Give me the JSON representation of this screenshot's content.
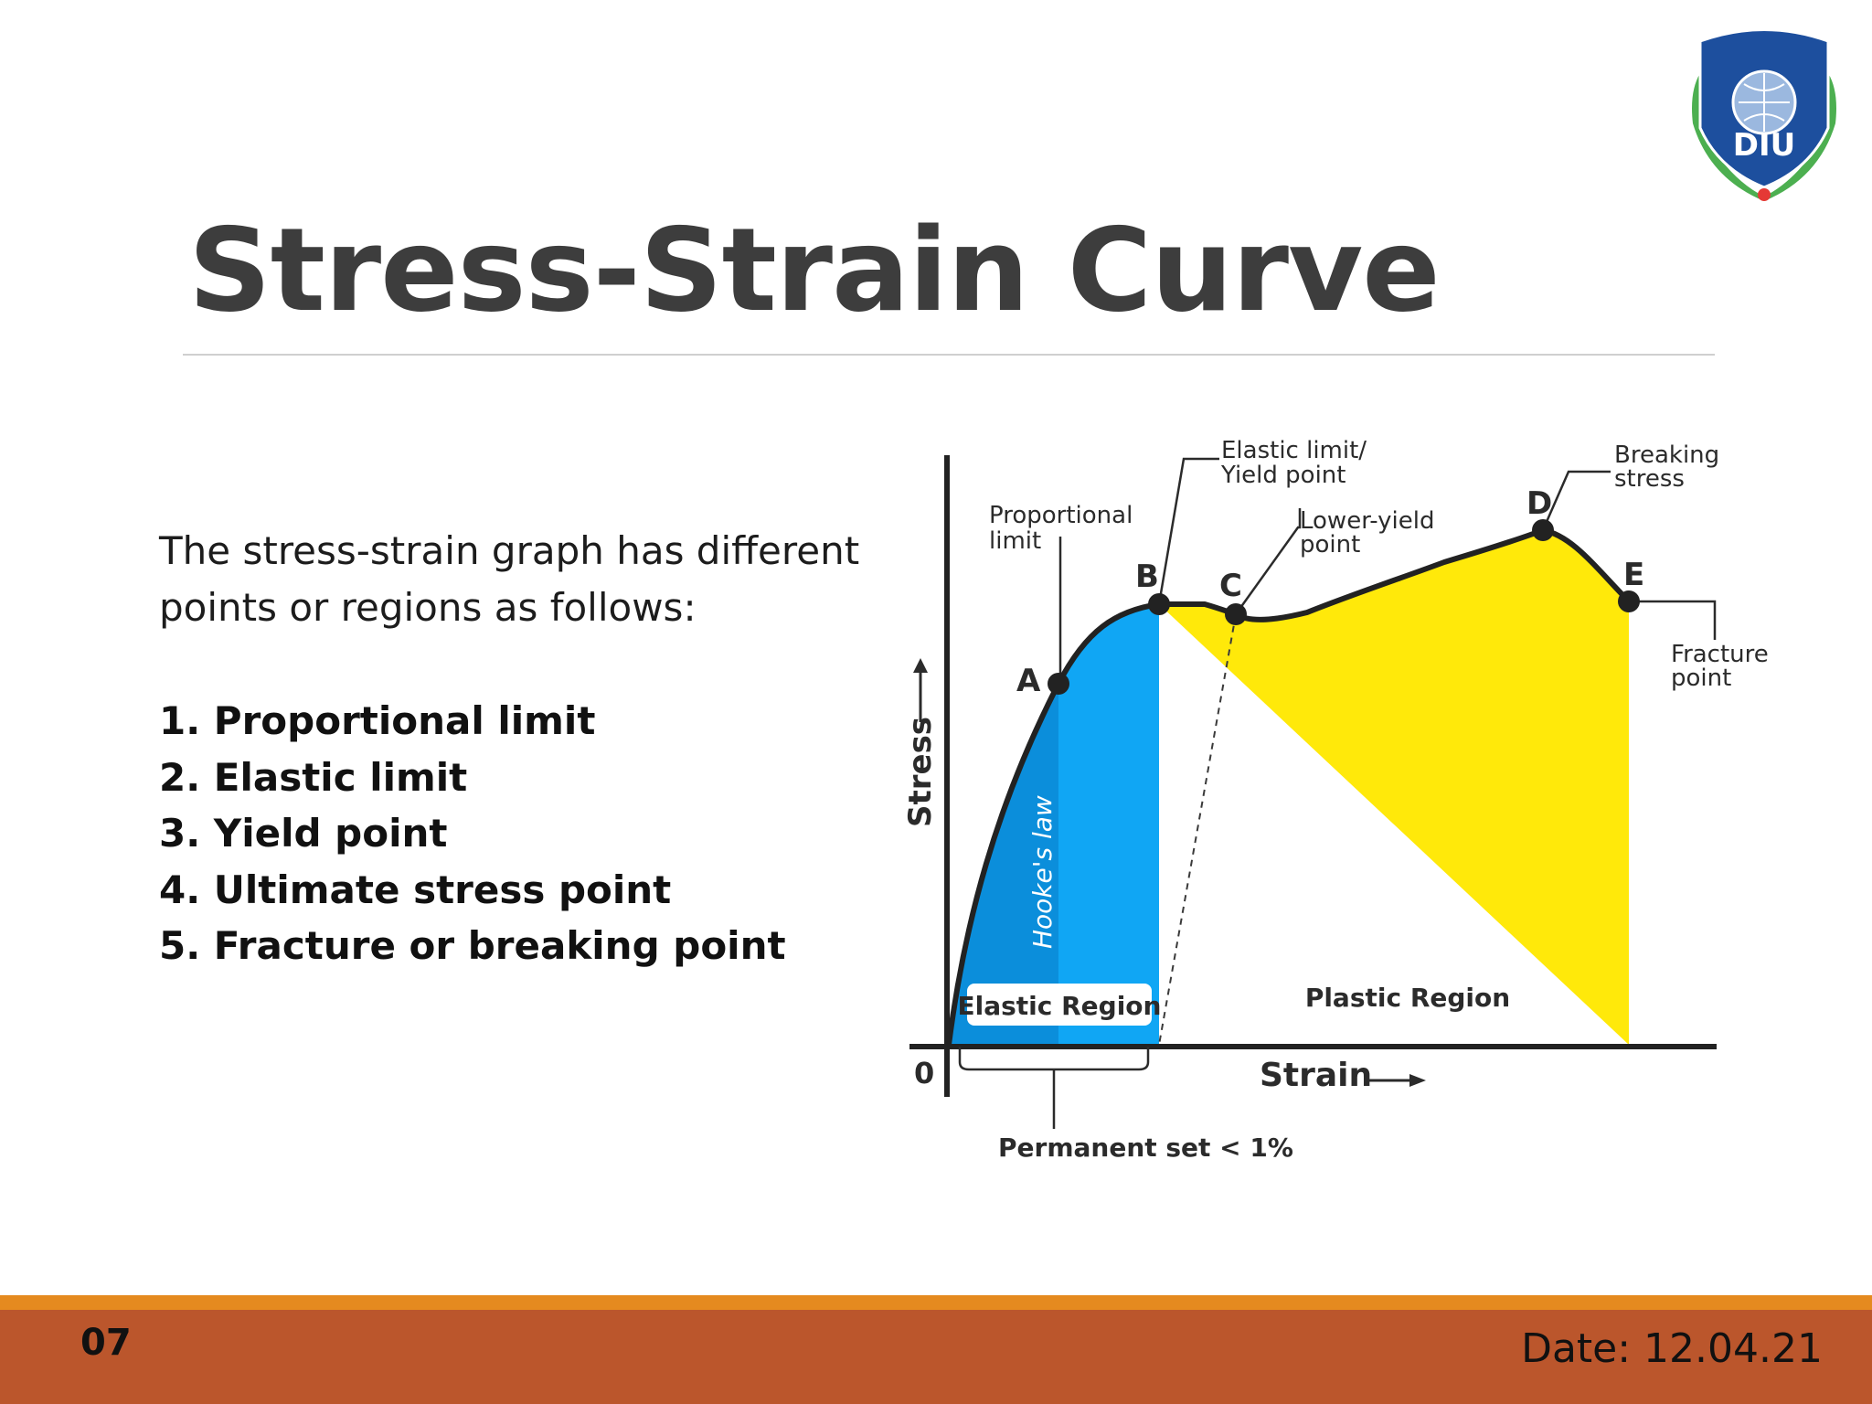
{
  "slide": {
    "title": "Stress-Strain Curve",
    "intro": "The stress-strain graph has different points or regions as follows:",
    "points": [
      "1. Proportional limit",
      "2. Elastic limit",
      "3. Yield point",
      "4. Ultimate stress point",
      "5. Fracture or breaking point"
    ],
    "slide_number": "07",
    "date": "Date: 12.04.21"
  },
  "logo": {
    "text": "DIU"
  },
  "diagram": {
    "axis": {
      "y_label": "Stress",
      "x_label": "Strain",
      "origin": "0"
    },
    "points": {
      "a": "A",
      "b": "B",
      "c": "C",
      "d": "D",
      "e": "E"
    },
    "callouts": {
      "proportional_1": "Proportional",
      "proportional_2": "limit",
      "elastic_1": "Elastic limit/",
      "elastic_2": "Yield point",
      "lower_1": "Lower-yield",
      "lower_2": "point",
      "breaking_1": "Breaking",
      "breaking_2": "stress",
      "fracture_1": "Fracture",
      "fracture_2": "point"
    },
    "hookes_law": "Hooke's law",
    "elastic_region": "Elastic Region",
    "plastic_region": "Plastic Region",
    "permanent_set": "Permanent set < 1%"
  },
  "colors": {
    "elastic_fill": "#10a6f4",
    "elastic_dark": "#0b8edb",
    "plastic_fill": "#ffe90a",
    "footer": "#bb562c",
    "footer_stripe": "#e58a1f",
    "logo_blue": "#1d4f9e",
    "logo_green": "#4caf50"
  }
}
